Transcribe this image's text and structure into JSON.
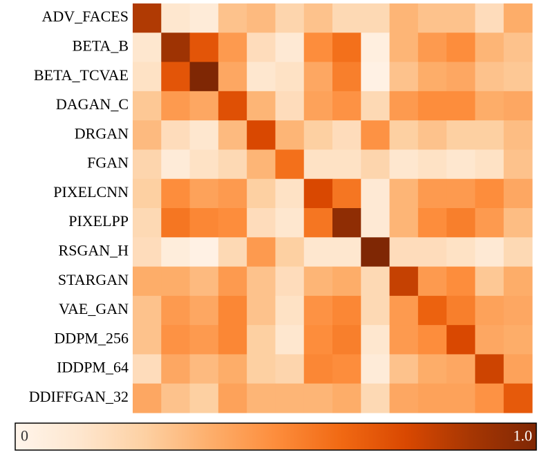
{
  "chart_data": {
    "type": "heatmap",
    "categories": [
      "ADV_FACES",
      "BETA_B",
      "BETA_TCVAE",
      "DAGAN_C",
      "DRGAN",
      "FGAN",
      "PIXELCNN",
      "PIXELPP",
      "RSGAN_H",
      "STARGAN",
      "VAE_GAN",
      "DDPM_256",
      "IDDPM_64",
      "DDIFFGAN_32"
    ],
    "z": [
      [
        0.85,
        0.12,
        0.08,
        0.3,
        0.33,
        0.22,
        0.3,
        0.2,
        0.2,
        0.35,
        0.3,
        0.3,
        0.18,
        0.38
      ],
      [
        0.12,
        0.9,
        0.7,
        0.45,
        0.18,
        0.1,
        0.5,
        0.6,
        0.05,
        0.35,
        0.45,
        0.5,
        0.35,
        0.3
      ],
      [
        0.15,
        0.7,
        1.0,
        0.4,
        0.12,
        0.15,
        0.4,
        0.55,
        0.03,
        0.3,
        0.38,
        0.4,
        0.3,
        0.28
      ],
      [
        0.28,
        0.45,
        0.4,
        0.72,
        0.35,
        0.18,
        0.42,
        0.48,
        0.2,
        0.45,
        0.5,
        0.5,
        0.38,
        0.4
      ],
      [
        0.33,
        0.18,
        0.12,
        0.33,
        0.75,
        0.35,
        0.25,
        0.18,
        0.48,
        0.25,
        0.3,
        0.25,
        0.25,
        0.32
      ],
      [
        0.22,
        0.08,
        0.15,
        0.2,
        0.35,
        0.6,
        0.15,
        0.15,
        0.22,
        0.12,
        0.15,
        0.12,
        0.15,
        0.3
      ],
      [
        0.25,
        0.5,
        0.42,
        0.45,
        0.25,
        0.15,
        0.75,
        0.58,
        0.1,
        0.35,
        0.45,
        0.45,
        0.5,
        0.4
      ],
      [
        0.2,
        0.58,
        0.52,
        0.5,
        0.18,
        0.12,
        0.58,
        0.95,
        0.1,
        0.35,
        0.5,
        0.55,
        0.45,
        0.32
      ],
      [
        0.18,
        0.07,
        0.03,
        0.2,
        0.45,
        0.25,
        0.12,
        0.12,
        1.0,
        0.18,
        0.18,
        0.15,
        0.1,
        0.2
      ],
      [
        0.38,
        0.38,
        0.33,
        0.45,
        0.3,
        0.18,
        0.35,
        0.38,
        0.2,
        0.8,
        0.45,
        0.5,
        0.28,
        0.38
      ],
      [
        0.3,
        0.45,
        0.4,
        0.52,
        0.3,
        0.15,
        0.48,
        0.52,
        0.2,
        0.45,
        0.65,
        0.55,
        0.42,
        0.4
      ],
      [
        0.3,
        0.48,
        0.45,
        0.52,
        0.25,
        0.12,
        0.5,
        0.55,
        0.12,
        0.45,
        0.5,
        0.75,
        0.4,
        0.38
      ],
      [
        0.18,
        0.4,
        0.33,
        0.38,
        0.25,
        0.22,
        0.52,
        0.5,
        0.08,
        0.3,
        0.38,
        0.4,
        0.78,
        0.42
      ],
      [
        0.4,
        0.3,
        0.25,
        0.42,
        0.35,
        0.35,
        0.35,
        0.38,
        0.2,
        0.4,
        0.42,
        0.42,
        0.48,
        0.68
      ]
    ],
    "colorscale": [
      "#fff5eb",
      "#fee6ce",
      "#fdd0a2",
      "#fdae6b",
      "#fd8d3c",
      "#f16913",
      "#d94801",
      "#a63603",
      "#7f2704"
    ],
    "clim": [
      0,
      1
    ],
    "cticks": [
      0,
      {
        "value": 1,
        "label": "1.0"
      }
    ]
  }
}
